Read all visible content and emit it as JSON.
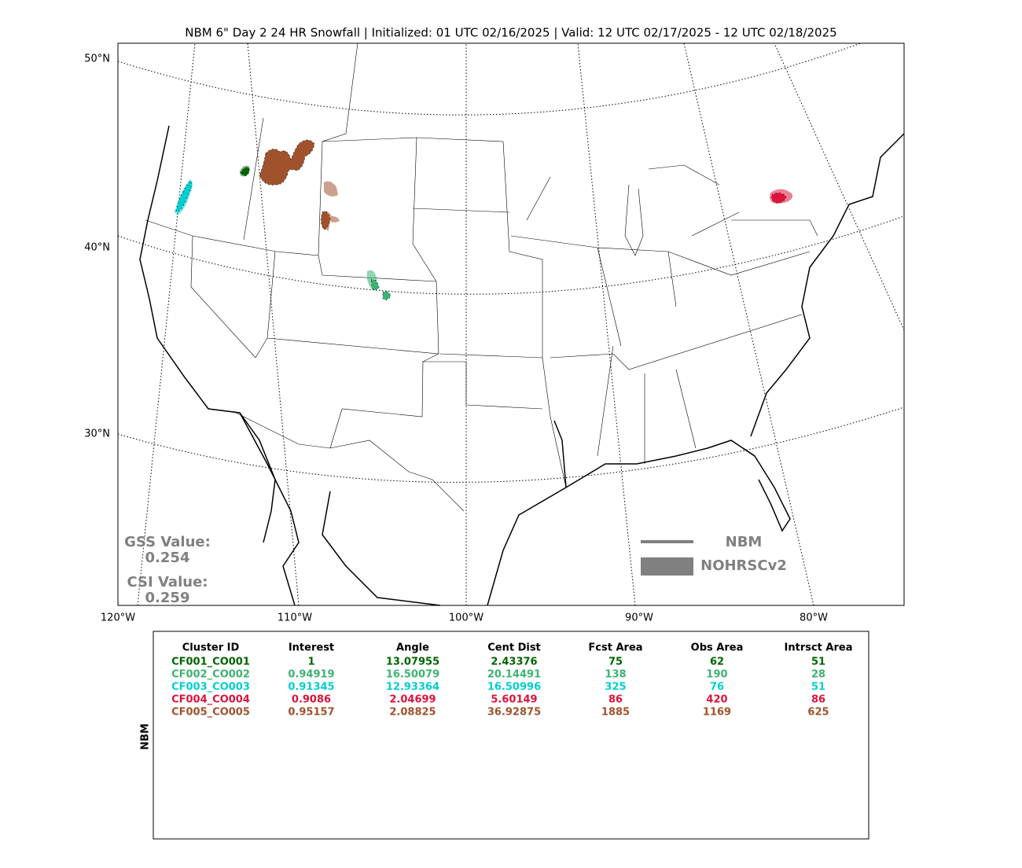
{
  "title": "NBM 6\" Day 2 24 HR Snowfall | Initialized: 01 UTC 02/16/2025 | Valid: 12 UTC 02/17/2025 - 12 UTC 02/18/2025",
  "lat_labels": [
    "50°N",
    "40°N",
    "30°N"
  ],
  "lon_labels": [
    "120°W",
    "110°W",
    "100°W",
    "90°W",
    "80°W"
  ],
  "scores": {
    "gss_label": "GSS Value:",
    "gss": "0.254",
    "csi_label": "CSI Value:",
    "csi": "0.259"
  },
  "legend": {
    "forecast": "NBM",
    "observed": "NOHRSCv2",
    "color": "#808080"
  },
  "table": {
    "side_label": "NBM",
    "headers": [
      "Cluster ID",
      "Interest",
      "Angle",
      "Cent Dist",
      "Fcst Area",
      "Obs Area",
      "Intrsct Area"
    ],
    "rows": [
      [
        "CF001_CO001",
        "1",
        "13.07955",
        "2.43376",
        "75",
        "62",
        "51"
      ],
      [
        "CF002_CO002",
        "0.94919",
        "16.50079",
        "20.14491",
        "138",
        "190",
        "28"
      ],
      [
        "CF003_CO003",
        "0.91345",
        "12.93364",
        "16.50996",
        "325",
        "76",
        "51"
      ],
      [
        "CF004_CO004",
        "0.9086",
        "2.04699",
        "5.60149",
        "86",
        "420",
        "86"
      ],
      [
        "CF005_CO005",
        "0.95157",
        "2.08825",
        "36.92875",
        "1885",
        "1169",
        "625"
      ]
    ],
    "row_colors": [
      "#006400",
      "#3cb371",
      "#00ced1",
      "#dc143c",
      "#a0522d"
    ]
  }
}
